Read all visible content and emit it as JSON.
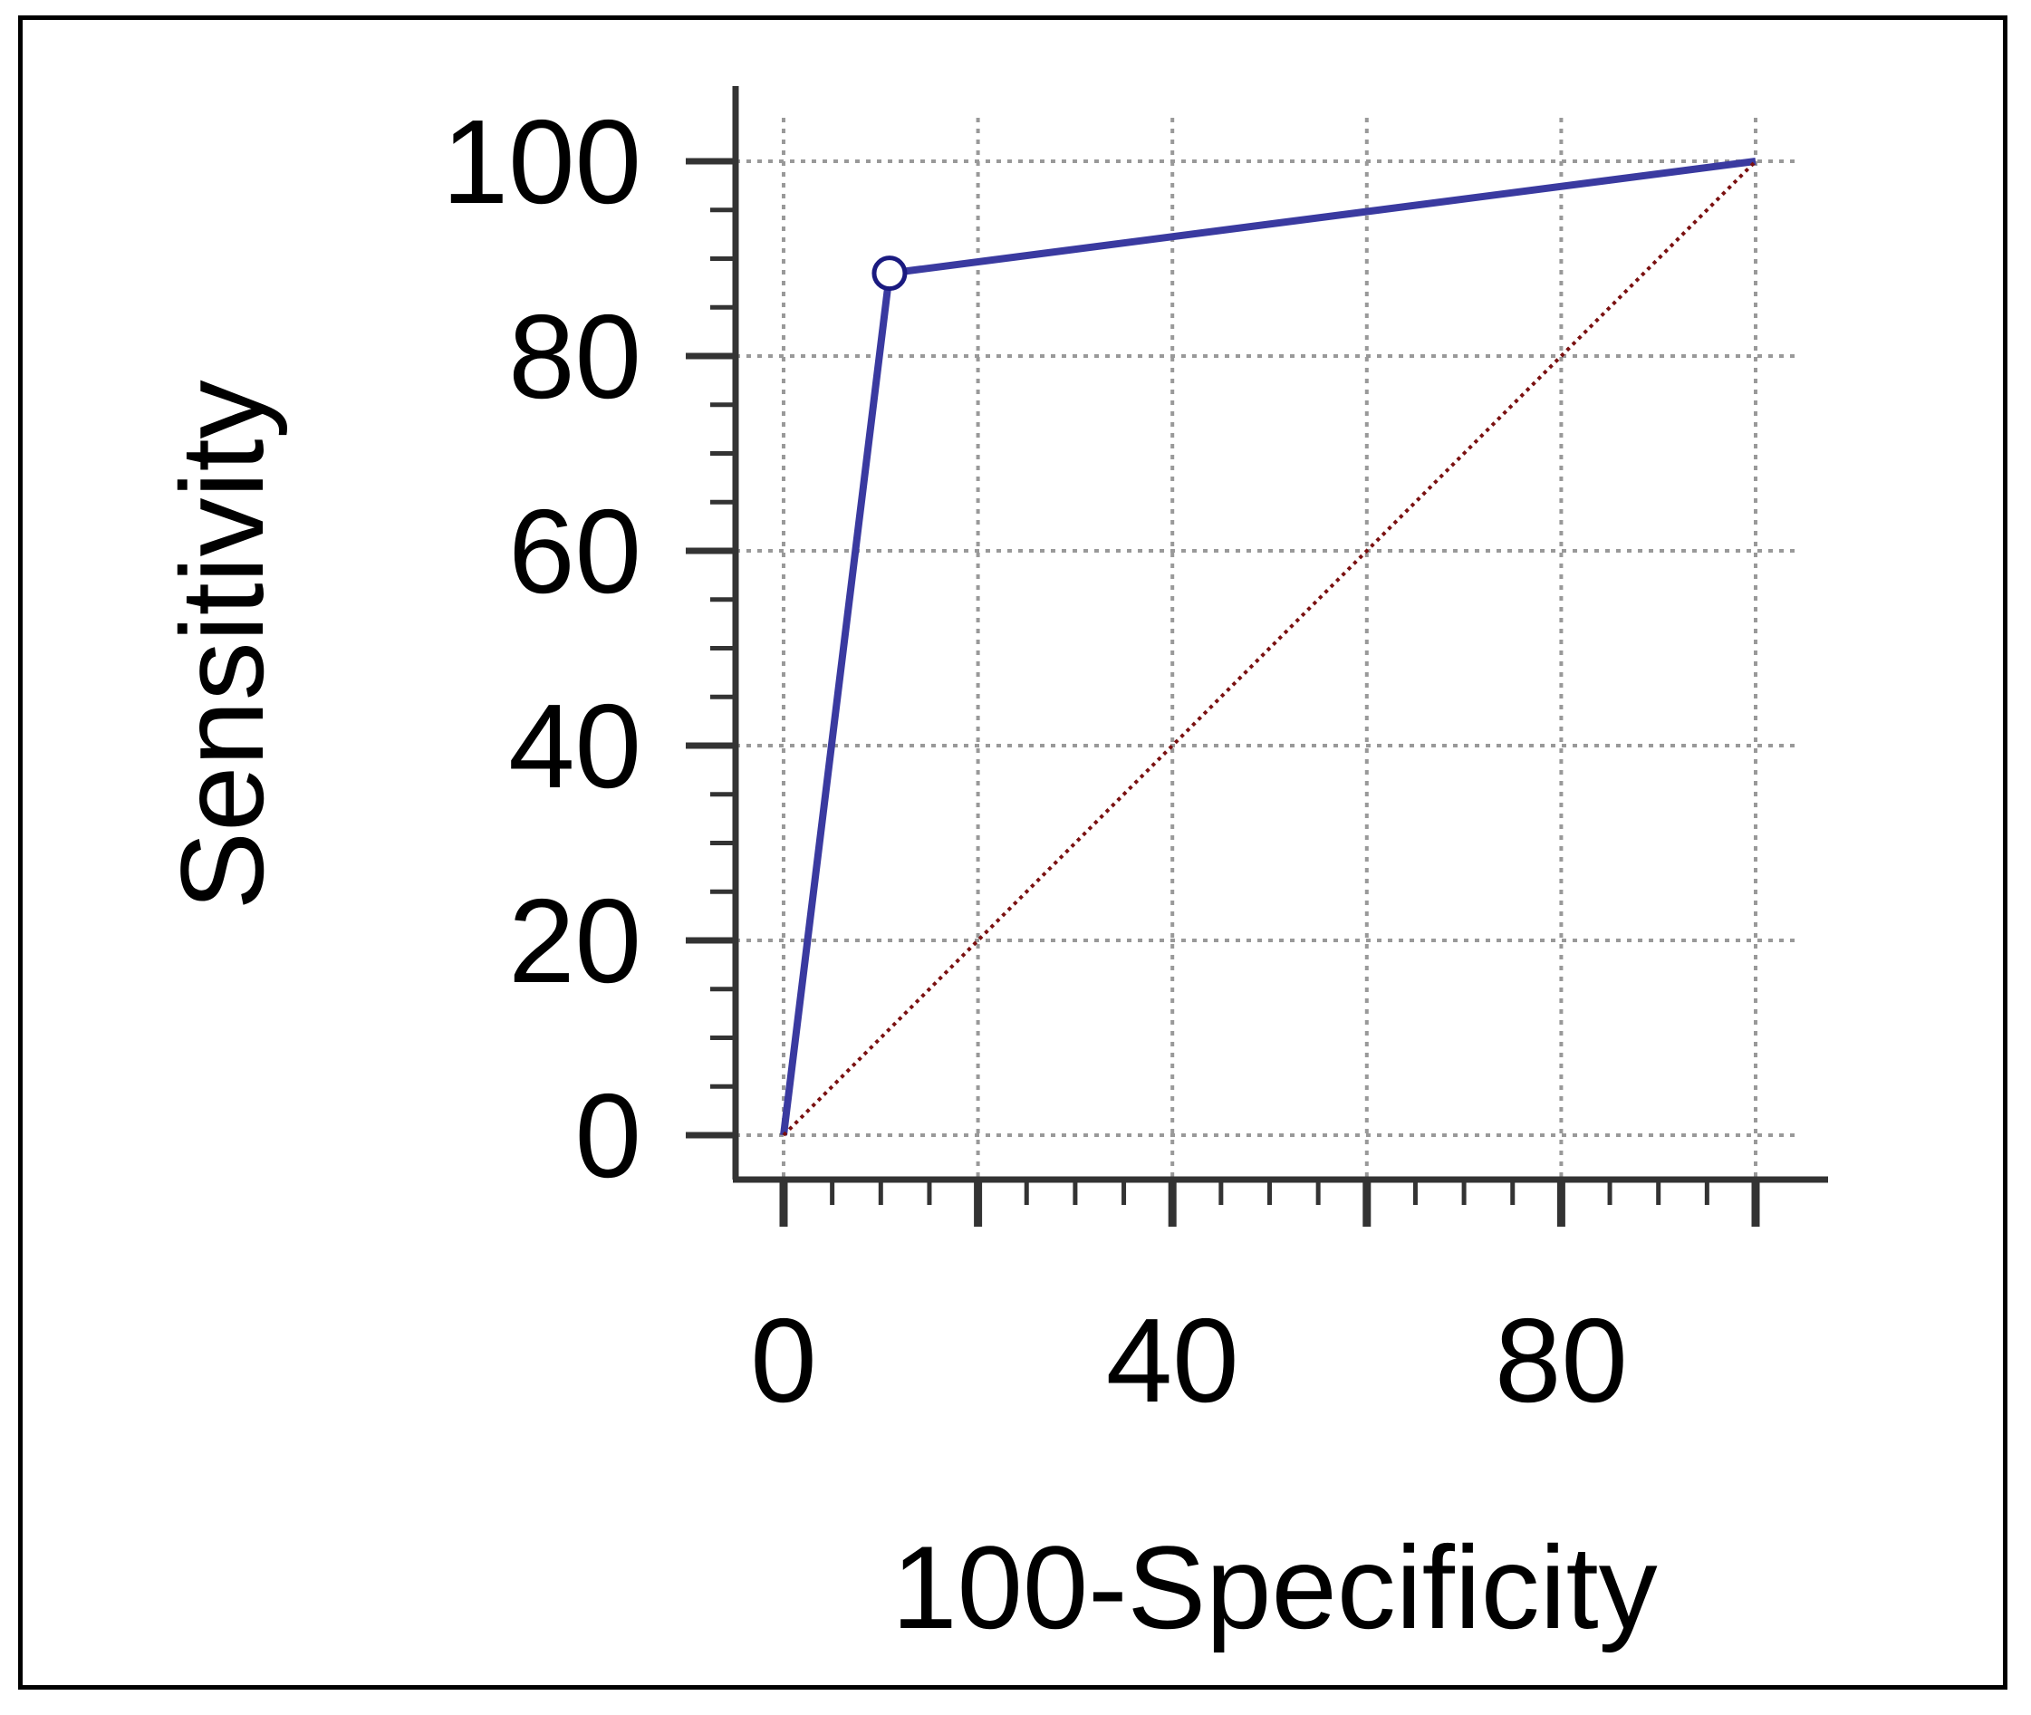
{
  "chart_data": {
    "type": "line",
    "title": "",
    "xlabel": "100-Specificity",
    "ylabel": "Sensitivity",
    "xlim": [
      0,
      100
    ],
    "ylim": [
      0,
      100
    ],
    "x_ticks": [
      0,
      40,
      80
    ],
    "x_tick_labels": [
      "0",
      "40",
      "80"
    ],
    "x_minor_step": 5,
    "y_ticks": [
      0,
      20,
      40,
      60,
      80,
      100
    ],
    "y_tick_labels": [
      "0",
      "20",
      "40",
      "60",
      "80",
      "100"
    ],
    "y_minor_step": 5,
    "grid": true,
    "grid_x": [
      0,
      20,
      40,
      60,
      80,
      100
    ],
    "series": [
      {
        "role": "roc-curve",
        "color": "#3a3aa0",
        "x": [
          0,
          10.9,
          100
        ],
        "y": [
          0,
          88.5,
          100
        ]
      },
      {
        "role": "reference-diagonal",
        "color": "#7a1010",
        "x": [
          0,
          100
        ],
        "y": [
          0,
          100
        ]
      }
    ],
    "highlight_point": {
      "x": 10.9,
      "y": 88.5,
      "color": "#1a1a80"
    }
  }
}
